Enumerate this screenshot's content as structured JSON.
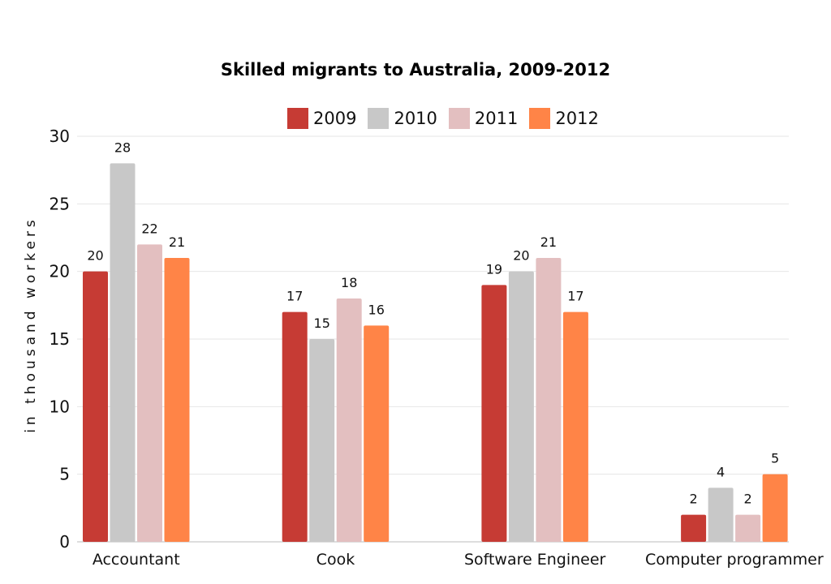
{
  "chart_data": {
    "type": "bar",
    "title": "Skilled migrants to Australia, 2009-2012",
    "xlabel": "",
    "ylabel": "in thousand workers",
    "ylim": [
      0,
      30
    ],
    "yticks": [
      0,
      5,
      10,
      15,
      20,
      25,
      30
    ],
    "grid": true,
    "legend_position": "top-center",
    "categories": [
      "Accountant",
      "Cook",
      "Software Engineer",
      "Computer programmer"
    ],
    "series": [
      {
        "name": "2009",
        "color": "#c63b34",
        "values": [
          20,
          17,
          19,
          2
        ]
      },
      {
        "name": "2010",
        "color": "#c8c8c8",
        "values": [
          28,
          15,
          20,
          4
        ]
      },
      {
        "name": "2011",
        "color": "#e3bfc0",
        "values": [
          22,
          18,
          21,
          2
        ]
      },
      {
        "name": "2012",
        "color": "#ff8447",
        "values": [
          21,
          16,
          17,
          5
        ]
      }
    ]
  }
}
